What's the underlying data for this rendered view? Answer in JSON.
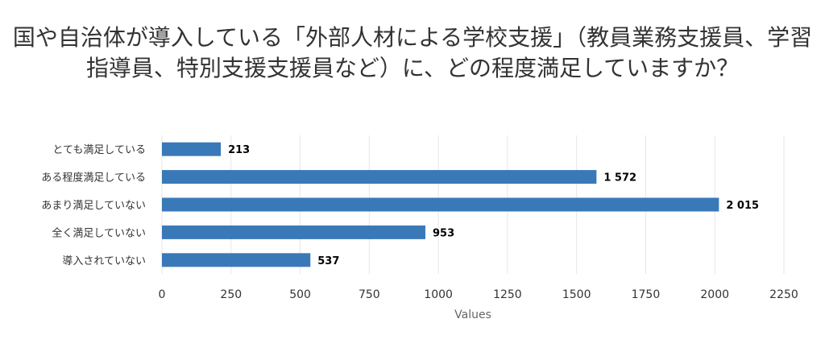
{
  "chart_data": {
    "type": "bar",
    "orientation": "horizontal",
    "title": "国や自治体が導入している「外部人材による学校支援」（教員業務支援員、学習指導員、特別支援支援員など）に、どの程度満足していますか？",
    "categories": [
      "とても満足している",
      "ある程度満足している",
      "あまり満足していない",
      "全く満足していない",
      "導入されていない"
    ],
    "values": [
      213,
      1572,
      2015,
      953,
      537
    ],
    "value_labels": [
      "213",
      "1 572",
      "2 015",
      "953",
      "537"
    ],
    "xlabel": "Values",
    "ylabel": "",
    "xlim": [
      0,
      2250
    ],
    "xticks": [
      0,
      250,
      500,
      750,
      1000,
      1250,
      1500,
      1750,
      2000,
      2250
    ],
    "grid": true,
    "legend": "none",
    "bar_color": "#3a79b8",
    "grid_color": "#e6e6e6"
  }
}
